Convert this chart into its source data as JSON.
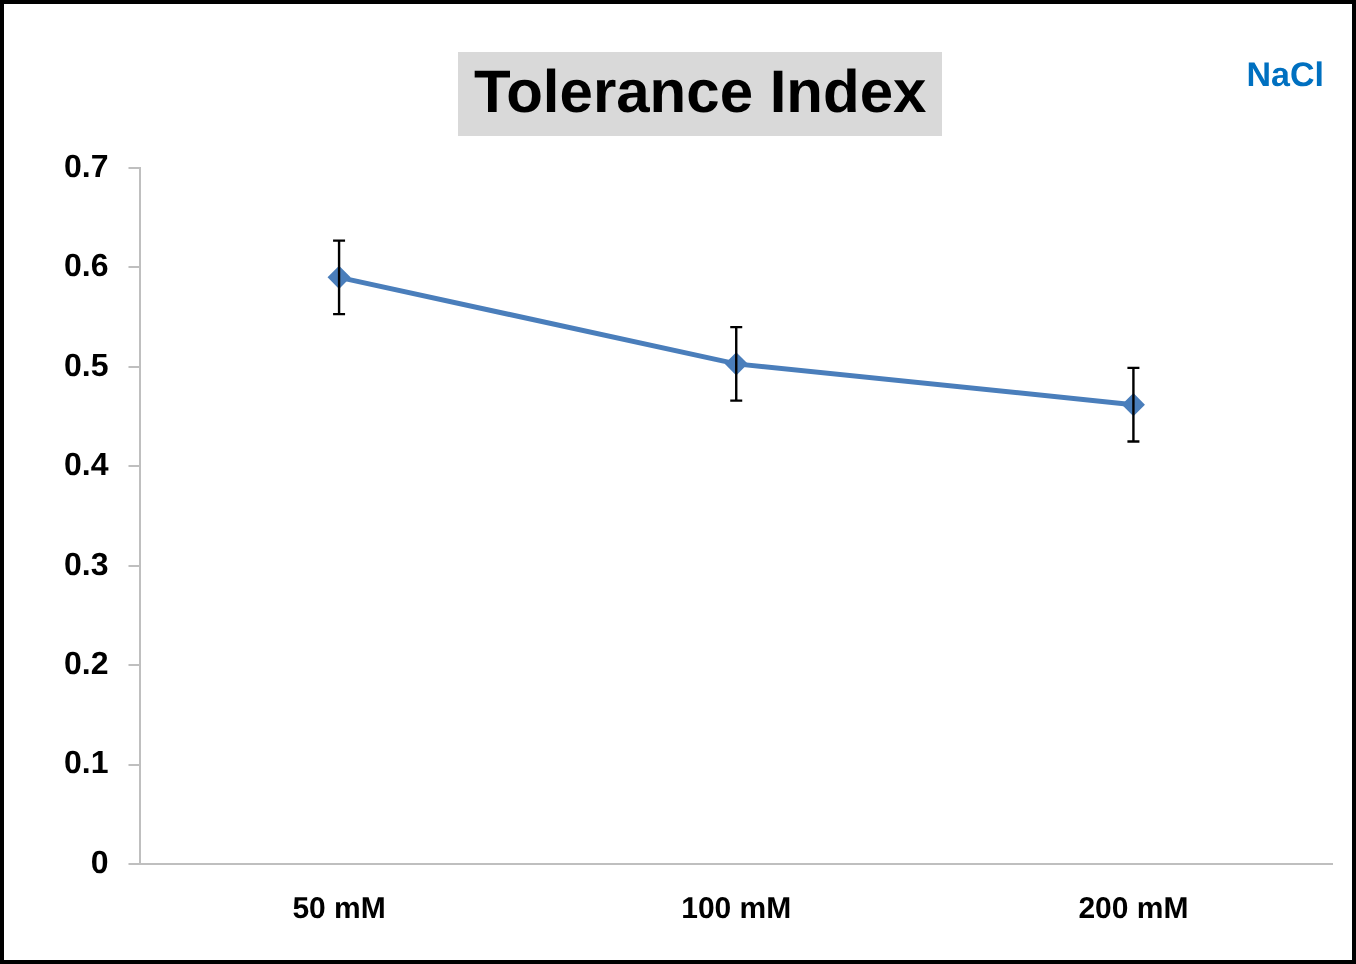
{
  "chart_data": {
    "type": "line",
    "title": "Tolerance Index",
    "annotations": [
      "NaCl"
    ],
    "categories": [
      "50 mM",
      "100 mM",
      "200 mM"
    ],
    "series": [
      {
        "color": "#4a7ebb",
        "values": [
          0.59,
          0.503,
          0.462
        ],
        "errors": [
          0.037,
          0.037,
          0.037
        ]
      }
    ],
    "ylim": [
      0,
      0.7
    ],
    "yticks": [
      0,
      0.1,
      0.2,
      0.3,
      0.4,
      0.5,
      0.6,
      0.7
    ],
    "grid": false,
    "legend": false,
    "marker": "diamond",
    "line_style": "solid"
  }
}
